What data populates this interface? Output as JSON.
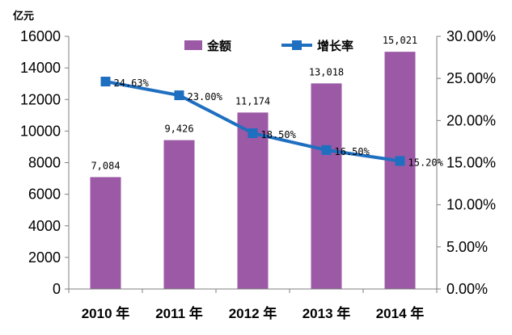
{
  "chart_data": {
    "type": "bar+line",
    "y_unit": "亿元",
    "categories": [
      "2010 年",
      "2011 年",
      "2012 年",
      "2013 年",
      "2014 年"
    ],
    "series": [
      {
        "name": "金额",
        "kind": "bar",
        "axis": "left",
        "color": "#9b59a6",
        "values": [
          7084,
          9426,
          11174,
          13018,
          15021
        ],
        "labels": [
          "7,084",
          "9,426",
          "11,174",
          "13,018",
          "15,021"
        ]
      },
      {
        "name": "增长率",
        "kind": "line",
        "axis": "right",
        "color": "#1f6fc1",
        "values": [
          24.63,
          23.0,
          18.5,
          16.5,
          15.2
        ],
        "labels": [
          "24.63%",
          "23.00%",
          "18.50%",
          "16.50%",
          "15.20%"
        ]
      }
    ],
    "y_left": {
      "min": 0,
      "max": 16000,
      "ticks": [
        0,
        2000,
        4000,
        6000,
        8000,
        10000,
        12000,
        14000,
        16000
      ],
      "tick_labels": [
        "0",
        "2000",
        "4000",
        "6000",
        "8000",
        "10000",
        "12000",
        "14000",
        "16000"
      ]
    },
    "y_right": {
      "min": 0,
      "max": 30,
      "ticks": [
        0,
        5,
        10,
        15,
        20,
        25,
        30
      ],
      "tick_labels": [
        "0.00%",
        "5.00%",
        "10.00%",
        "15.00%",
        "20.00%",
        "25.00%",
        "30.00%"
      ]
    },
    "legend_position": "top-center",
    "grid": false
  }
}
